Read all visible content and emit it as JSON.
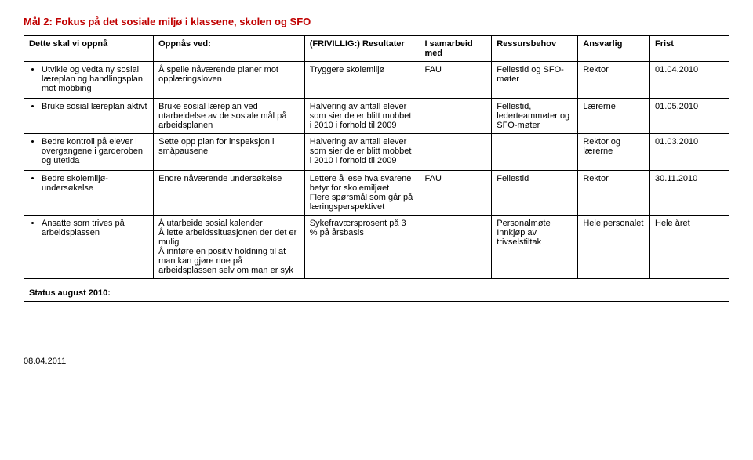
{
  "title": "Mål 2: Fokus på det sosiale miljø i klassene, skolen og SFO",
  "headers": {
    "c1": "Dette skal vi oppnå",
    "c2": "Oppnås ved:",
    "c3": "(FRIVILLIG:) Resultater",
    "c4": "I samarbeid med",
    "c5": "Ressursbehov",
    "c6": "Ansvarlig",
    "c7": "Frist"
  },
  "rows": [
    {
      "c1": [
        "Utvikle og vedta ny sosial læreplan og handlingsplan mot mobbing"
      ],
      "c2": "Å speile nåværende planer mot opplæringsloven",
      "c3": "Tryggere skolemiljø",
      "c4": "FAU",
      "c5": "Fellestid og SFO-møter",
      "c6": "Rektor",
      "c7": "01.04.2010"
    },
    {
      "c1": [
        "Bruke sosial læreplan aktivt"
      ],
      "c2": "Bruke sosial læreplan ved utarbeidelse av de sosiale mål på arbeidsplanen",
      "c3": "Halvering av antall elever som sier de er blitt mobbet i 2010 i forhold til 2009",
      "c4": "",
      "c5": "Fellestid, lederteammøter og SFO-møter",
      "c6": "Lærerne",
      "c7": "01.05.2010"
    },
    {
      "c1": [
        "Bedre kontroll på elever i overgangene i garderoben og utetida"
      ],
      "c2": "Sette opp plan for inspeksjon i småpausene",
      "c3": "Halvering av antall elever som sier de er blitt mobbet i 2010 i forhold til 2009",
      "c4": "",
      "c5": "",
      "c6": "Rektor og lærerne",
      "c7": "01.03.2010"
    },
    {
      "c1": [
        "Bedre skolemiljø-undersøkelse"
      ],
      "c2": "Endre nåværende undersøkelse",
      "c3": "Lettere å lese hva svarene betyr for skolemiljøet\nFlere spørsmål som går på læringsperspektivet",
      "c4": "FAU",
      "c5": "Fellestid",
      "c6": "Rektor",
      "c7": "30.11.2010"
    },
    {
      "c1": [
        "Ansatte som trives på arbeidsplassen"
      ],
      "c2": "Å utarbeide sosial kalender\nÅ lette arbeidssituasjonen der det er mulig\nÅ innføre en positiv holdning til at man kan gjøre noe på arbeidsplassen selv om man er syk",
      "c3": "Sykefraværsprosent på 3 % på årsbasis",
      "c4": "",
      "c5": "Personalmøte\nInnkjøp av trivselstiltak",
      "c6": "Hele personalet",
      "c7": "Hele året"
    }
  ],
  "status": "Status august 2010:",
  "footer": "08.04.2011"
}
